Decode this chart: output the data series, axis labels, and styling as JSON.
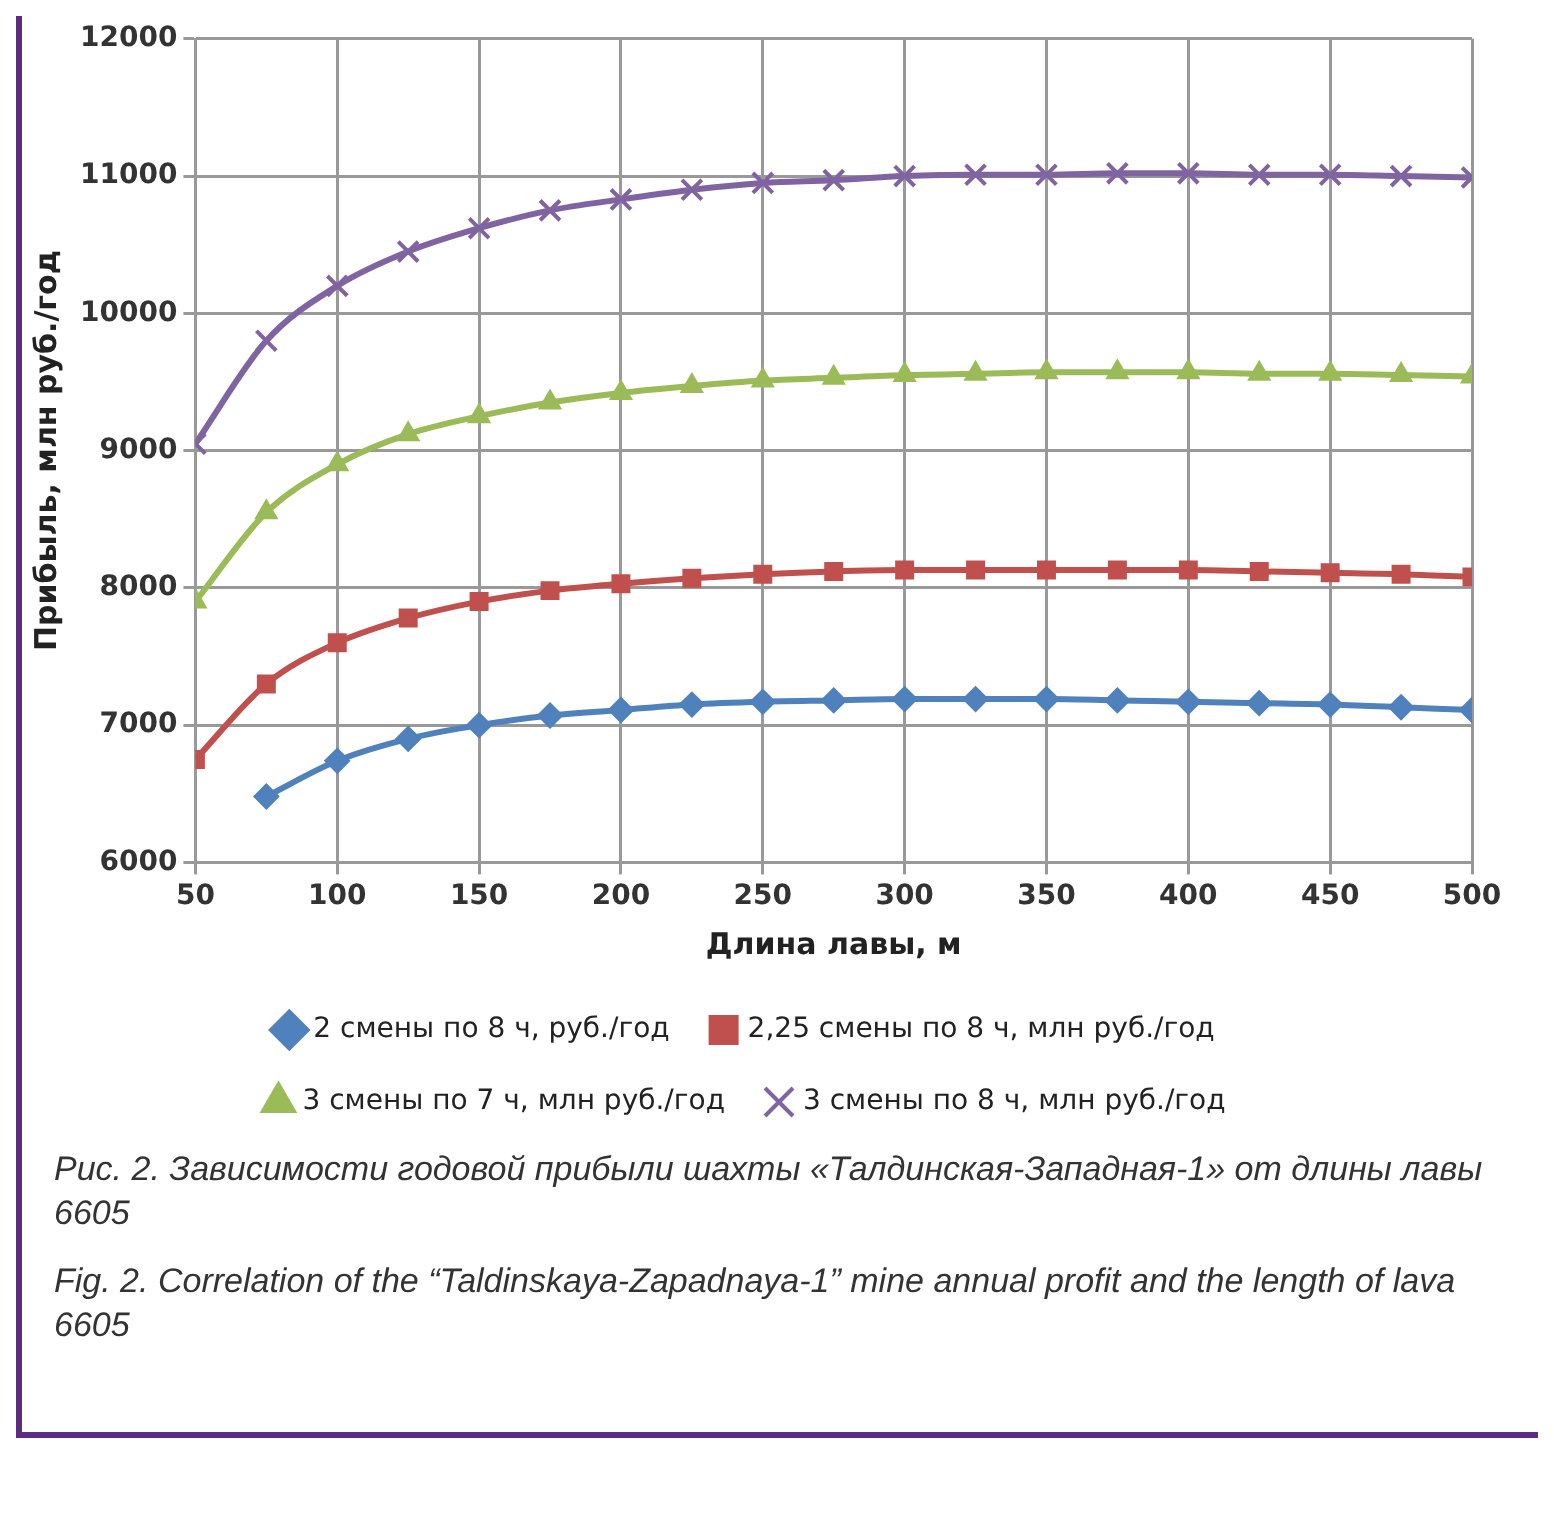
{
  "chart_data": {
    "type": "line",
    "ylabel": "Прибыль, млн руб./год",
    "xlabel": "Длина лавы, м",
    "x": [
      50,
      75,
      100,
      125,
      150,
      175,
      200,
      225,
      250,
      275,
      300,
      325,
      350,
      375,
      400,
      425,
      450,
      475,
      500
    ],
    "xlim": [
      50,
      500
    ],
    "xticks": [
      50,
      100,
      150,
      200,
      250,
      300,
      350,
      400,
      450,
      500
    ],
    "ylim": [
      6000,
      12000
    ],
    "yticks": [
      6000,
      7000,
      8000,
      9000,
      10000,
      11000,
      12000
    ],
    "grid": true,
    "legend": "bottom",
    "line_style": "solid",
    "series": [
      {
        "name": "2 смены по 8 ч, руб./год",
        "color": "#4f81bd",
        "marker": "diamond",
        "values": [
          null,
          6480,
          6740,
          6900,
          7000,
          7070,
          7110,
          7150,
          7170,
          7180,
          7190,
          7190,
          7190,
          7180,
          7170,
          7160,
          7150,
          7130,
          7110
        ]
      },
      {
        "name": "2,25 смены по 8 ч, млн руб./год",
        "color": "#c0504d",
        "marker": "square",
        "values": [
          6750,
          7300,
          7600,
          7780,
          7900,
          7980,
          8030,
          8070,
          8100,
          8120,
          8130,
          8130,
          8130,
          8130,
          8130,
          8120,
          8110,
          8100,
          8080
        ]
      },
      {
        "name": "3 смены по 7 ч, млн руб./год",
        "color": "#9bbb59",
        "marker": "triangle",
        "values": [
          7900,
          8550,
          8900,
          9120,
          9250,
          9350,
          9420,
          9470,
          9510,
          9530,
          9550,
          9560,
          9570,
          9570,
          9570,
          9560,
          9560,
          9550,
          9540
        ]
      },
      {
        "name": "3 смены по 8 ч, млн руб./год",
        "color": "#8064a2",
        "marker": "cross",
        "values": [
          9050,
          9800,
          10200,
          10450,
          10620,
          10750,
          10830,
          10900,
          10950,
          10970,
          11000,
          11010,
          11010,
          11020,
          11020,
          11010,
          11010,
          11000,
          10990
        ]
      }
    ],
    "annotations": [
      "Рис. 2. Зависимости годовой прибыли шахты «Талдинская-Западная-1» от длины лавы 6605",
      "Fig. 2. Correlation of the “Taldinskaya-Zapadnaya-1” mine annual profit and the length of lava 6605"
    ]
  }
}
